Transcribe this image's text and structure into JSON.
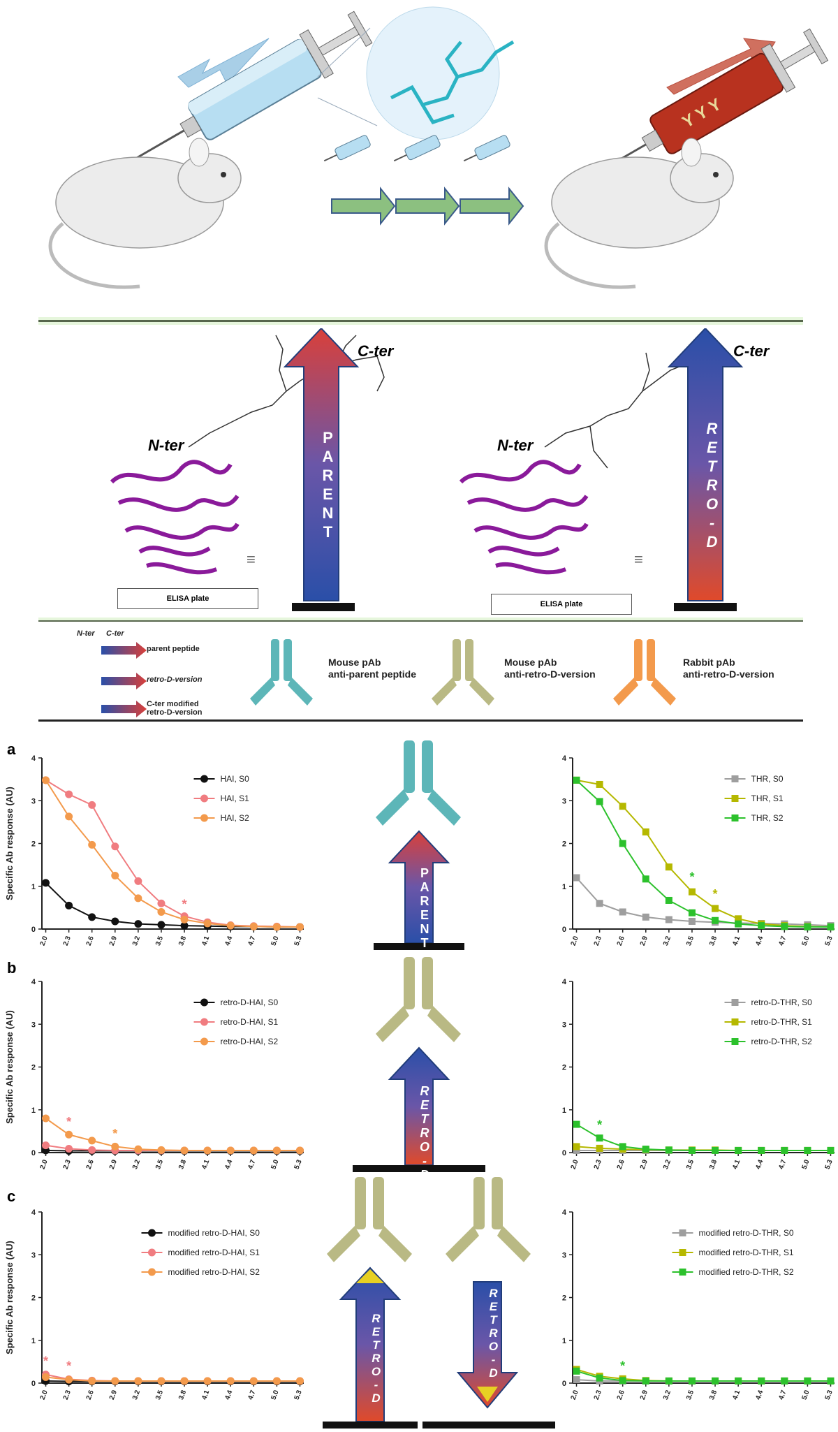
{
  "top": {
    "colors": {
      "mouse": "#e6e6e6",
      "syringe_blue": "#9fd2ec",
      "syringe_red": "#b8321f",
      "arrow_blue": "#a9cfe7",
      "arrow_red": "#cc5a4a",
      "seq_arrow": "#8cc080"
    }
  },
  "structures": {
    "left": {
      "nter": "N-ter",
      "cter": "C-ter",
      "plate": "ELISA plate",
      "arrow": "PARENT"
    },
    "right": {
      "nter": "N-ter",
      "cter": "C-ter",
      "plate": "ELISA plate",
      "arrow": "RETRO-D"
    }
  },
  "legend": {
    "nter": "N-ter",
    "cter": "C-ter",
    "peptides": [
      "parent peptide",
      "retro-D-version",
      "C-ter modified retro-D-version"
    ],
    "antibodies": [
      {
        "line1": "Mouse pAb",
        "line2": "anti-parent peptide",
        "color": "#5db6b8"
      },
      {
        "line1": "Mouse pAb",
        "line2": "anti-retro-D-version",
        "color": "#b9b984"
      },
      {
        "line1": "Rabbit pAb",
        "line2": "anti-retro-D-version",
        "color": "#f39a4c"
      }
    ]
  },
  "panels": [
    "a",
    "b",
    "c"
  ],
  "ylabel": "Specific Ab response (AU)",
  "xticks": [
    "2.0",
    "2.3",
    "2.6",
    "2.9",
    "3.2",
    "3.5",
    "3.8",
    "4.1",
    "4.4",
    "4.7",
    "5.0",
    "5.3"
  ],
  "yticks": [
    "0",
    "1",
    "2",
    "3",
    "4"
  ],
  "center_arrows": {
    "a": "PARENT",
    "b": "RETRO-D",
    "c1": "RETRO-D",
    "c2": "RETRO-D"
  },
  "chart_data": [
    {
      "type": "line",
      "panel": "a",
      "side": "left",
      "ylim": [
        0,
        4
      ],
      "x": [
        2.0,
        2.3,
        2.6,
        2.9,
        3.2,
        3.5,
        3.8,
        4.1,
        4.4,
        4.7,
        5.0,
        5.3
      ],
      "series": [
        {
          "name": "HAI, S0",
          "color": "#111111",
          "marker": "circle",
          "values": [
            1.08,
            0.55,
            0.28,
            0.18,
            0.12,
            0.1,
            0.08,
            0.07,
            0.06,
            0.06,
            0.05,
            0.05
          ]
        },
        {
          "name": "HAI, S1",
          "color": "#f07c80",
          "marker": "circle",
          "values": [
            3.48,
            3.15,
            2.9,
            1.93,
            1.12,
            0.6,
            0.3,
            0.16,
            0.09,
            0.07,
            0.06,
            0.05
          ]
        },
        {
          "name": "HAI, S2",
          "color": "#f39a4c",
          "marker": "circle",
          "values": [
            3.48,
            2.63,
            1.97,
            1.25,
            0.72,
            0.4,
            0.22,
            0.13,
            0.08,
            0.06,
            0.05,
            0.05
          ]
        }
      ],
      "annotations": [
        {
          "x": 3.8,
          "y": 0.48,
          "text": "*",
          "color": "#f07c80"
        }
      ]
    },
    {
      "type": "line",
      "panel": "a",
      "side": "right",
      "ylim": [
        0,
        4
      ],
      "x": [
        2.0,
        2.3,
        2.6,
        2.9,
        3.2,
        3.5,
        3.8,
        4.1,
        4.4,
        4.7,
        5.0,
        5.3
      ],
      "series": [
        {
          "name": "THR, S0",
          "color": "#9e9e9e",
          "marker": "square",
          "values": [
            1.2,
            0.6,
            0.4,
            0.28,
            0.22,
            0.18,
            0.16,
            0.14,
            0.13,
            0.12,
            0.1,
            0.08
          ]
        },
        {
          "name": "THR, S1",
          "color": "#b5b800",
          "marker": "square",
          "values": [
            3.48,
            3.38,
            2.87,
            2.27,
            1.45,
            0.87,
            0.48,
            0.24,
            0.12,
            0.08,
            0.06,
            0.05
          ]
        },
        {
          "name": "THR, S2",
          "color": "#2cc12c",
          "marker": "square",
          "values": [
            3.48,
            2.98,
            2.0,
            1.17,
            0.67,
            0.38,
            0.2,
            0.12,
            0.08,
            0.06,
            0.05,
            0.05
          ]
        }
      ],
      "annotations": [
        {
          "x": 3.5,
          "y": 1.12,
          "text": "*",
          "color": "#2cc12c"
        },
        {
          "x": 3.8,
          "y": 0.72,
          "text": "*",
          "color": "#b5b800"
        }
      ]
    },
    {
      "type": "line",
      "panel": "b",
      "side": "left",
      "ylim": [
        0,
        4
      ],
      "x": [
        2.0,
        2.3,
        2.6,
        2.9,
        3.2,
        3.5,
        3.8,
        4.1,
        4.4,
        4.7,
        5.0,
        5.3
      ],
      "series": [
        {
          "name": "retro-D-HAI, S0",
          "color": "#111111",
          "marker": "circle",
          "values": [
            0.05,
            0.04,
            0.04,
            0.04,
            0.04,
            0.04,
            0.04,
            0.04,
            0.04,
            0.04,
            0.04,
            0.04
          ]
        },
        {
          "name": "retro-D-HAI, S1",
          "color": "#f07c80",
          "marker": "circle",
          "values": [
            0.17,
            0.09,
            0.06,
            0.05,
            0.05,
            0.05,
            0.05,
            0.05,
            0.05,
            0.05,
            0.05,
            0.05
          ]
        },
        {
          "name": "retro-D-HAI, S2",
          "color": "#f39a4c",
          "marker": "circle",
          "values": [
            0.8,
            0.42,
            0.28,
            0.14,
            0.08,
            0.06,
            0.05,
            0.05,
            0.05,
            0.05,
            0.05,
            0.05
          ]
        }
      ],
      "annotations": [
        {
          "x": 2.3,
          "y": 0.62,
          "text": "*",
          "color": "#f07c80"
        },
        {
          "x": 2.9,
          "y": 0.34,
          "text": "*",
          "color": "#f39a4c"
        }
      ]
    },
    {
      "type": "line",
      "panel": "b",
      "side": "right",
      "ylim": [
        0,
        4
      ],
      "x": [
        2.0,
        2.3,
        2.6,
        2.9,
        3.2,
        3.5,
        3.8,
        4.1,
        4.4,
        4.7,
        5.0,
        5.3
      ],
      "series": [
        {
          "name": "retro-D-THR, S0",
          "color": "#9e9e9e",
          "marker": "square",
          "values": [
            0.05,
            0.05,
            0.05,
            0.05,
            0.05,
            0.05,
            0.05,
            0.05,
            0.05,
            0.05,
            0.05,
            0.05
          ]
        },
        {
          "name": "retro-D-THR, S1",
          "color": "#b5b800",
          "marker": "square",
          "values": [
            0.14,
            0.1,
            0.08,
            0.07,
            0.06,
            0.06,
            0.06,
            0.05,
            0.05,
            0.05,
            0.05,
            0.05
          ]
        },
        {
          "name": "retro-D-THR, S2",
          "color": "#2cc12c",
          "marker": "square",
          "values": [
            0.66,
            0.34,
            0.14,
            0.08,
            0.06,
            0.05,
            0.05,
            0.05,
            0.05,
            0.05,
            0.05,
            0.05
          ]
        }
      ],
      "annotations": [
        {
          "x": 2.3,
          "y": 0.55,
          "text": "*",
          "color": "#2cc12c"
        }
      ]
    },
    {
      "type": "line",
      "panel": "c",
      "side": "left",
      "ylim": [
        0,
        4
      ],
      "x": [
        2.0,
        2.3,
        2.6,
        2.9,
        3.2,
        3.5,
        3.8,
        4.1,
        4.4,
        4.7,
        5.0,
        5.3
      ],
      "series": [
        {
          "name": "modified retro-D-HAI, S0",
          "color": "#111111",
          "marker": "circle",
          "values": [
            0.05,
            0.04,
            0.04,
            0.04,
            0.04,
            0.04,
            0.04,
            0.04,
            0.04,
            0.04,
            0.04,
            0.04
          ]
        },
        {
          "name": "modified retro-D-HAI, S1",
          "color": "#f07c80",
          "marker": "circle",
          "values": [
            0.2,
            0.09,
            0.06,
            0.05,
            0.05,
            0.05,
            0.05,
            0.05,
            0.05,
            0.05,
            0.05,
            0.05
          ]
        },
        {
          "name": "modified retro-D-HAI, S2",
          "color": "#f39a4c",
          "marker": "circle",
          "values": [
            0.14,
            0.08,
            0.05,
            0.05,
            0.05,
            0.05,
            0.05,
            0.05,
            0.05,
            0.05,
            0.05,
            0.05
          ]
        }
      ],
      "annotations": [
        {
          "x": 2.0,
          "y": 0.42,
          "text": "*",
          "color": "#f07c80"
        },
        {
          "x": 2.3,
          "y": 0.3,
          "text": "*",
          "color": "#f07c80"
        }
      ]
    },
    {
      "type": "line",
      "panel": "c",
      "side": "right",
      "ylim": [
        0,
        4
      ],
      "x": [
        2.0,
        2.3,
        2.6,
        2.9,
        3.2,
        3.5,
        3.8,
        4.1,
        4.4,
        4.7,
        5.0,
        5.3
      ],
      "series": [
        {
          "name": "modified retro-D-THR, S0",
          "color": "#9e9e9e",
          "marker": "square",
          "values": [
            0.08,
            0.05,
            0.05,
            0.05,
            0.05,
            0.05,
            0.05,
            0.05,
            0.05,
            0.05,
            0.05,
            0.05
          ]
        },
        {
          "name": "modified retro-D-THR, S1",
          "color": "#b5b800",
          "marker": "square",
          "values": [
            0.32,
            0.16,
            0.1,
            0.06,
            0.05,
            0.05,
            0.05,
            0.05,
            0.05,
            0.05,
            0.05,
            0.05
          ]
        },
        {
          "name": "modified retro-D-THR, S2",
          "color": "#2cc12c",
          "marker": "square",
          "values": [
            0.28,
            0.12,
            0.06,
            0.05,
            0.05,
            0.05,
            0.05,
            0.05,
            0.05,
            0.05,
            0.05,
            0.05
          ]
        }
      ],
      "annotations": [
        {
          "x": 2.6,
          "y": 0.3,
          "text": "*",
          "color": "#2cc12c"
        }
      ]
    }
  ]
}
